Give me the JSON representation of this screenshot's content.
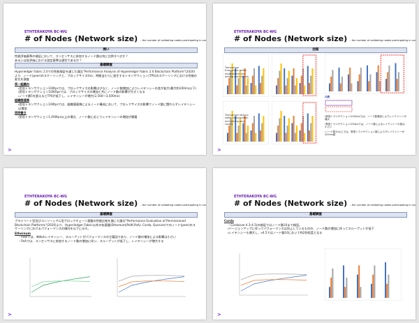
{
  "slides": [
    {
      "brand": "ETHTERAKOYA BC-WG",
      "title": "# of Nodes (Network size)",
      "subtitle": "- the number of validating nodes participating in consensus -",
      "sections": [
        {
          "heading": "問い",
          "lines": [
            {
              "text": "性能評価基準の検証において、コンセンサスに参加するノード数は何に比例すべきか？",
              "style": "plain"
            },
            {
              "text": "あるいは各評価における設定基準は適切であるか？",
              "style": "plain"
            }
          ]
        },
        {
          "heading": "基礎調査",
          "lines": [
            {
              "text": "Hyperledger Fabric 2.0での性能検証を通じた論文\"Performance Analysis of Hyperledger Fabric 2.0 Blockchain Platform\"(2020)より、ノード(peer)のスケーリングと、ブロックサイズ(tx)、時間当たりに発生するトランザクション(TPS)のスケーリングにおける性能の変化を調査",
              "style": "plain"
            },
            {
              "text": "同一組織内",
              "style": "sub"
            },
            {
              "text": "・受信トランザクション100tpsでは、ブロックサイズの影響は少なく、ノード数増加によりレイテンシーの差が拡大(最大約100ms以下)",
              "style": "bullet"
            },
            {
              "text": "・受信トランザクション1000tpsでは、ブロックサイズの増加と共にノード数の影響が大きくなる",
              "style": "bullet"
            },
            {
              "text": "・ノード数5を超えるとTPSが低下し、レイテンシーが増大(2,500～3,500ms)",
              "style": "bullet"
            },
            {
              "text": "組織間連携",
              "style": "sub"
            },
            {
              "text": "・受信トランザクション100tpsでは、組織間連携によるノード構成において、ブロックサイズの影響でノード数に関わらずレイテンシーは増加",
              "style": "bullet"
            },
            {
              "text": "同時書き",
              "style": "sub"
            },
            {
              "text": "・受信トランザクション1,000tps以上の場合、ノード数に応じてレイテンシーの増加が顕著",
              "style": "bullet"
            }
          ]
        }
      ]
    },
    {
      "brand": "ETHTERAKOYA BC-WG",
      "title": "# of Nodes (Network size)",
      "subtitle": "- the number of validating nodes participating in consensus -",
      "sections": [
        {
          "heading": "回答",
          "lines": []
        }
      ],
      "panels": [
        "Transaction throughput within organization and among peer counts",
        "Transaction latency within organization and among peer counts"
      ],
      "legend": "凡例",
      "notes": [
        "・受信トランザクション1000tpsでは、ノード数増加によりレイテンシーが増大",
        "・受信トランザクション100tpsでは、ノード数によるレイテンシーの差は小さい",
        "・ノード数10以上では、受信トランザクション数によらずレイテンシーが400ms超"
      ]
    },
    {
      "brand": "ETHTERAKOYA BC-WG",
      "title": "# of Nodes (Network size)",
      "subtitle": "- the number of validating nodes participating in consensus -",
      "sections": [
        {
          "heading": "基礎調査",
          "lines": [
            {
              "text": "プライベート型及びコンソーシアム型ブロックチェーン基盤の性能比較を論じた論文\"Performance Evaluation of Permissioned Blockchain Platforms\"(2020)より、Hyperledger Fabric以外の各基盤(Ethereum(PoW,PoA), Corda, Quorum)でのノード(peer)のスケーリングにおけるパフォーマンスの傾向を以下に示す。",
              "style": "plain"
            },
            {
              "text": "Ethereum",
              "style": "sub"
            },
            {
              "text": "・PoWでは、単体のレイテンシー、スループットがパフォーマンスの主要因であり、ノード数の増加による影響は小さい",
              "style": "bullet"
            },
            {
              "text": "・PoAでは、コンセンサスに参加するノード数の増加に伴い、スループットが低下し、レイテンシーが増大する",
              "style": "bullet"
            }
          ]
        }
      ]
    },
    {
      "brand": "ETHTERAKOYA BC-WG",
      "title": "# of Nodes (Network size)",
      "subtitle": "- the number of validating nodes participating in consensus -",
      "sections": [
        {
          "heading": "基礎調査",
          "lines": [
            {
              "text": "Corda",
              "style": "sub"
            },
            {
              "text": "・Corda(ver.4.3-4.5)の検証ではノード数10まで検証。",
              "style": "bullet"
            },
            {
              "text": "・バージョンアップに伴ってパフォーマンスは向上しているものの、ノード数の増加に伴ってスループットが低下",
              "style": "bullet"
            },
            {
              "text": "・レイテンシーも増大し、v4.5ではノード数10において約2秒程度となる",
              "style": "bullet"
            }
          ]
        }
      ]
    }
  ]
}
